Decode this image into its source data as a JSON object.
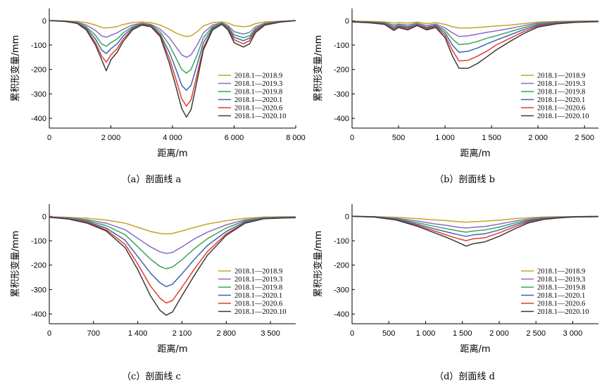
{
  "series_colors": [
    "#c9a227",
    "#8a6cc4",
    "#3fa35a",
    "#3a64b5",
    "#e23c2c",
    "#3a3a3a"
  ],
  "legend_labels": [
    "2018.1—2018.9",
    "2018.1—2019.3",
    "2018.1—2019.8",
    "2018.1—2020.1",
    "2018.1—2020.6",
    "2018.1—2020.10"
  ],
  "chart_data": [
    {
      "type": "line",
      "caption": "（a）剖面线 a",
      "xlabel": "距离/m",
      "ylabel": "累积形变量/mm",
      "xlim": [
        0,
        8000
      ],
      "ylim": [
        -440,
        50
      ],
      "xticks": [
        0,
        2000,
        4000,
        6000,
        8000
      ],
      "xtick_labels": [
        "0",
        "2 000",
        "4 000",
        "6 000",
        "8 000"
      ],
      "yticks": [
        0,
        -100,
        -200,
        -300,
        -400
      ],
      "ytick_labels": [
        "0",
        "-100",
        "-200",
        "-300",
        "-400"
      ],
      "legend_position": "center-right",
      "x": [
        0,
        500,
        900,
        1200,
        1500,
        1700,
        1850,
        2000,
        2200,
        2400,
        2700,
        3000,
        3300,
        3600,
        3900,
        4100,
        4300,
        4450,
        4600,
        4800,
        5000,
        5300,
        5600,
        5800,
        6000,
        6300,
        6500,
        6700,
        7000,
        7500,
        8000
      ],
      "series": [
        {
          "name": "2018.1—2018.9",
          "values": [
            0,
            -1,
            -3,
            -8,
            -18,
            -28,
            -30,
            -28,
            -24,
            -16,
            -8,
            -5,
            -8,
            -18,
            -35,
            -50,
            -60,
            -65,
            -62,
            -45,
            -22,
            -8,
            -5,
            -10,
            -20,
            -25,
            -22,
            -12,
            -5,
            -2,
            0
          ]
        },
        {
          "name": "2018.1—2019.3",
          "values": [
            0,
            -2,
            -6,
            -18,
            -40,
            -62,
            -68,
            -60,
            -50,
            -35,
            -18,
            -10,
            -15,
            -35,
            -70,
            -105,
            -140,
            -150,
            -140,
            -100,
            -50,
            -18,
            -8,
            -20,
            -45,
            -55,
            -48,
            -25,
            -10,
            -3,
            0
          ]
        },
        {
          "name": "2018.1—2019.8",
          "values": [
            0,
            -2,
            -8,
            -25,
            -60,
            -95,
            -105,
            -90,
            -75,
            -50,
            -25,
            -12,
            -18,
            -45,
            -100,
            -150,
            -200,
            -215,
            -200,
            -140,
            -70,
            -25,
            -10,
            -25,
            -58,
            -70,
            -62,
            -32,
            -12,
            -4,
            0
          ]
        },
        {
          "name": "2018.1—2020.1",
          "values": [
            0,
            -2,
            -9,
            -30,
            -75,
            -120,
            -135,
            -115,
            -95,
            -62,
            -30,
            -14,
            -20,
            -55,
            -130,
            -195,
            -265,
            -285,
            -265,
            -180,
            -90,
            -30,
            -12,
            -30,
            -68,
            -82,
            -72,
            -38,
            -14,
            -4,
            0
          ]
        },
        {
          "name": "2018.1—2020.6",
          "values": [
            0,
            -3,
            -10,
            -35,
            -90,
            -145,
            -170,
            -140,
            -115,
            -75,
            -35,
            -16,
            -22,
            -60,
            -155,
            -235,
            -320,
            -350,
            -325,
            -220,
            -110,
            -35,
            -14,
            -34,
            -78,
            -95,
            -82,
            -42,
            -16,
            -5,
            0
          ]
        },
        {
          "name": "2018.1—2020.10",
          "values": [
            0,
            -3,
            -11,
            -38,
            -100,
            -160,
            -205,
            -160,
            -130,
            -85,
            -38,
            -18,
            -25,
            -65,
            -175,
            -265,
            -360,
            -395,
            -365,
            -245,
            -120,
            -38,
            -15,
            -38,
            -90,
            -108,
            -95,
            -48,
            -18,
            -6,
            0
          ]
        }
      ]
    },
    {
      "type": "line",
      "caption": "（b）剖面线 b",
      "xlabel": "距离/m",
      "ylabel": "累积形变量/mm",
      "xlim": [
        0,
        2650
      ],
      "ylim": [
        -440,
        50
      ],
      "xticks": [
        0,
        500,
        1000,
        1500,
        2000,
        2500
      ],
      "xtick_labels": [
        "0",
        "500",
        "1 000",
        "1 500",
        "2 000",
        "2 500"
      ],
      "yticks": [
        0,
        -100,
        -200,
        -300,
        -400
      ],
      "ytick_labels": [
        "0",
        "-100",
        "-200",
        "-300",
        "-400"
      ],
      "legend_position": "center-right",
      "x": [
        0,
        200,
        350,
        450,
        500,
        600,
        700,
        800,
        900,
        1000,
        1080,
        1150,
        1250,
        1350,
        1450,
        1550,
        1700,
        1850,
        2000,
        2200,
        2400,
        2650
      ],
      "series": [
        {
          "name": "2018.1—2018.9",
          "values": [
            -2,
            -3,
            -5,
            -10,
            -8,
            -10,
            -6,
            -12,
            -8,
            -15,
            -25,
            -30,
            -30,
            -28,
            -25,
            -22,
            -18,
            -12,
            -6,
            -3,
            -2,
            -1
          ]
        },
        {
          "name": "2018.1—2019.3",
          "values": [
            -3,
            -5,
            -8,
            -18,
            -14,
            -18,
            -10,
            -20,
            -14,
            -30,
            -50,
            -65,
            -62,
            -55,
            -48,
            -42,
            -32,
            -20,
            -10,
            -5,
            -3,
            -2
          ]
        },
        {
          "name": "2018.1—2019.8",
          "values": [
            -3,
            -6,
            -10,
            -24,
            -18,
            -24,
            -14,
            -26,
            -18,
            -40,
            -75,
            -98,
            -95,
            -85,
            -72,
            -62,
            -45,
            -28,
            -14,
            -7,
            -4,
            -2
          ]
        },
        {
          "name": "2018.1—2020.1",
          "values": [
            -4,
            -7,
            -12,
            -30,
            -22,
            -28,
            -16,
            -30,
            -20,
            -50,
            -100,
            -130,
            -125,
            -112,
            -95,
            -80,
            -58,
            -36,
            -18,
            -9,
            -5,
            -3
          ]
        },
        {
          "name": "2018.1—2020.6",
          "values": [
            -4,
            -8,
            -14,
            -35,
            -25,
            -33,
            -18,
            -34,
            -24,
            -60,
            -122,
            -165,
            -162,
            -145,
            -125,
            -100,
            -72,
            -44,
            -22,
            -11,
            -6,
            -3
          ]
        },
        {
          "name": "2018.1—2020.10",
          "values": [
            -5,
            -9,
            -15,
            -40,
            -28,
            -38,
            -20,
            -38,
            -28,
            -70,
            -145,
            -195,
            -195,
            -175,
            -148,
            -120,
            -85,
            -52,
            -26,
            -13,
            -7,
            -4
          ]
        }
      ]
    },
    {
      "type": "line",
      "caption": "（c）剖面线 c",
      "xlabel": "距离/m",
      "ylabel": "累积形变量/mm",
      "xlim": [
        0,
        3900
      ],
      "ylim": [
        -440,
        50
      ],
      "xticks": [
        0,
        700,
        1400,
        2100,
        2800,
        3500
      ],
      "xtick_labels": [
        "0",
        "700",
        "1 400",
        "2 100",
        "2 800",
        "3 500"
      ],
      "yticks": [
        0,
        -100,
        -200,
        -300,
        -400
      ],
      "ytick_labels": [
        "0",
        "-100",
        "-200",
        "-300",
        "-400"
      ],
      "legend_position": "center-right",
      "x": [
        0,
        300,
        600,
        900,
        1200,
        1400,
        1600,
        1750,
        1850,
        1950,
        2100,
        2300,
        2500,
        2800,
        3100,
        3400,
        3700,
        3900
      ],
      "series": [
        {
          "name": "2018.1—2018.9",
          "values": [
            -2,
            -4,
            -8,
            -15,
            -28,
            -45,
            -62,
            -70,
            -72,
            -70,
            -60,
            -45,
            -32,
            -18,
            -8,
            -3,
            -2,
            -2
          ]
        },
        {
          "name": "2018.1—2019.3",
          "values": [
            -2,
            -6,
            -14,
            -28,
            -55,
            -90,
            -125,
            -145,
            -152,
            -148,
            -125,
            -92,
            -65,
            -35,
            -14,
            -5,
            -3,
            -3
          ]
        },
        {
          "name": "2018.1—2019.8",
          "values": [
            -3,
            -7,
            -18,
            -38,
            -75,
            -125,
            -175,
            -205,
            -215,
            -208,
            -178,
            -132,
            -92,
            -48,
            -18,
            -6,
            -4,
            -3
          ]
        },
        {
          "name": "2018.1—2020.1",
          "values": [
            -3,
            -9,
            -22,
            -48,
            -98,
            -165,
            -232,
            -272,
            -288,
            -278,
            -235,
            -175,
            -120,
            -62,
            -22,
            -8,
            -5,
            -4
          ]
        },
        {
          "name": "2018.1—2020.6",
          "values": [
            -3,
            -10,
            -25,
            -55,
            -115,
            -195,
            -285,
            -335,
            -355,
            -345,
            -290,
            -215,
            -145,
            -72,
            -26,
            -9,
            -6,
            -5
          ]
        },
        {
          "name": "2018.1—2020.10",
          "values": [
            -4,
            -11,
            -28,
            -60,
            -128,
            -218,
            -325,
            -385,
            -405,
            -392,
            -325,
            -240,
            -160,
            -78,
            -28,
            -10,
            -7,
            -6
          ]
        }
      ]
    },
    {
      "type": "line",
      "caption": "（d）剖面线 d",
      "xlabel": "距离/m",
      "ylabel": "累积形变量/mm",
      "xlim": [
        0,
        3350
      ],
      "ylim": [
        -440,
        50
      ],
      "xticks": [
        0,
        500,
        1000,
        1500,
        2000,
        2500,
        3000
      ],
      "xtick_labels": [
        "0",
        "500",
        "1 000",
        "1 500",
        "2 000",
        "2 500",
        "3 000"
      ],
      "yticks": [
        0,
        -100,
        -200,
        -300,
        -400
      ],
      "ytick_labels": [
        "0",
        "-100",
        "-200",
        "-300",
        "-400"
      ],
      "legend_position": "center-right",
      "x": [
        0,
        300,
        600,
        900,
        1100,
        1300,
        1450,
        1550,
        1650,
        1800,
        2000,
        2200,
        2400,
        2600,
        2800,
        3000,
        3350
      ],
      "series": [
        {
          "name": "2018.1—2018.9",
          "values": [
            0,
            -1,
            -4,
            -10,
            -14,
            -18,
            -22,
            -24,
            -22,
            -20,
            -16,
            -10,
            -6,
            -3,
            -2,
            -1,
            0
          ]
        },
        {
          "name": "2018.1—2019.3",
          "values": [
            0,
            -2,
            -8,
            -20,
            -30,
            -38,
            -45,
            -48,
            -45,
            -42,
            -32,
            -20,
            -11,
            -5,
            -3,
            -2,
            0
          ]
        },
        {
          "name": "2018.1—2019.8",
          "values": [
            0,
            -2,
            -10,
            -27,
            -40,
            -52,
            -60,
            -65,
            -60,
            -56,
            -44,
            -28,
            -15,
            -7,
            -4,
            -2,
            -1
          ]
        },
        {
          "name": "2018.1—2020.1",
          "values": [
            0,
            -2,
            -12,
            -33,
            -50,
            -65,
            -76,
            -82,
            -76,
            -72,
            -56,
            -36,
            -19,
            -9,
            -5,
            -2,
            -1
          ]
        },
        {
          "name": "2018.1—2020.6",
          "values": [
            0,
            -3,
            -14,
            -38,
            -58,
            -78,
            -92,
            -100,
            -92,
            -88,
            -68,
            -44,
            -23,
            -11,
            -6,
            -3,
            -1
          ]
        },
        {
          "name": "2018.1—2020.10",
          "values": [
            0,
            -3,
            -15,
            -42,
            -65,
            -88,
            -108,
            -122,
            -112,
            -105,
            -82,
            -53,
            -27,
            -13,
            -7,
            -3,
            -1
          ]
        }
      ]
    }
  ]
}
